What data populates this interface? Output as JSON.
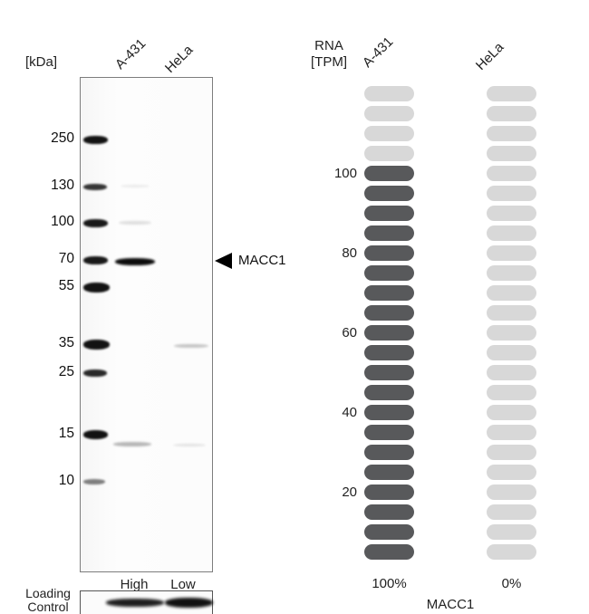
{
  "figure": {
    "western_blot": {
      "kda_label": "[kDa]",
      "lanes": [
        "A-431",
        "HeLa"
      ],
      "lane_levels": [
        "High",
        "Low"
      ],
      "marker_labels": [
        "250",
        "130",
        "100",
        "70",
        "55",
        "35",
        "25",
        "15",
        "10"
      ],
      "band_annotation": "MACC1",
      "loading_control": [
        "Loading",
        "Control"
      ]
    }
  },
  "chart_data": {
    "type": "pictorial-bar",
    "title": "MACC1",
    "ylabel_lines": [
      "RNA",
      "[TPM]"
    ],
    "categories": [
      "A-431",
      "HeLa"
    ],
    "yticks": [
      "100",
      "80",
      "60",
      "40",
      "20"
    ],
    "ytick_values": [
      100,
      80,
      60,
      40,
      20
    ],
    "pills_per_column": 24,
    "series": [
      {
        "name": "A-431",
        "value_tpm": 100,
        "filled_pills": 20,
        "percent_label": "100%"
      },
      {
        "name": "HeLa",
        "value_tpm": 0,
        "filled_pills": 0,
        "percent_label": "0%"
      }
    ],
    "colors": {
      "filled": "#58595b",
      "empty": "#d8d8d8"
    },
    "legend_position": "none",
    "grid": false
  }
}
